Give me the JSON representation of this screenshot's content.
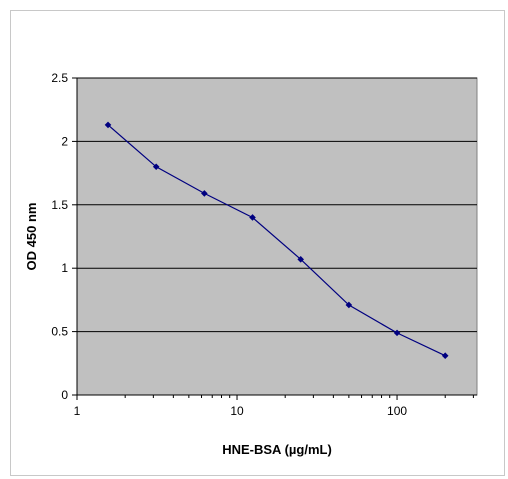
{
  "chart_data": {
    "type": "line",
    "title": "",
    "xlabel": "HNE-BSA (µg/mL)",
    "ylabel": "OD 450 nm",
    "x_scale": "log",
    "xlim": [
      1,
      316
    ],
    "ylim": [
      0,
      2.5
    ],
    "x_ticks": [
      1,
      10,
      100
    ],
    "x_tick_labels": [
      "1",
      "10",
      "100"
    ],
    "y_ticks": [
      0,
      0.5,
      1,
      1.5,
      2,
      2.5
    ],
    "y_tick_labels": [
      "0",
      "0.5",
      "1",
      "1.5",
      "2",
      "2.5"
    ],
    "grid": "horizontal",
    "legend": "none",
    "series": [
      {
        "x": [
          1.5625,
          3.125,
          6.25,
          12.5,
          25,
          50,
          100,
          200
        ],
        "y": [
          2.13,
          1.8,
          1.59,
          1.4,
          1.07,
          0.71,
          0.49,
          0.31
        ]
      }
    ],
    "colors": {
      "plot_background": "#c0c0c0",
      "line": "#000080",
      "marker": "#000080",
      "grid": "#000000",
      "frame": "#808080"
    }
  }
}
